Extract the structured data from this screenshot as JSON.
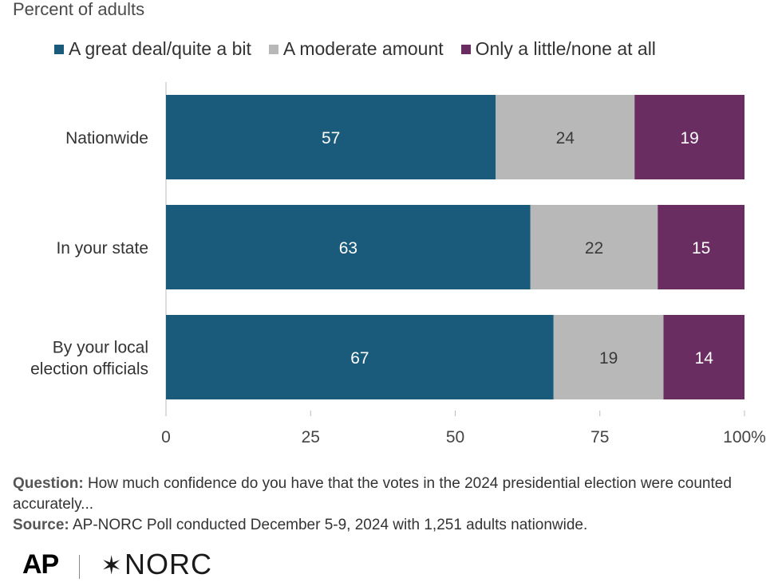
{
  "chart_data": {
    "type": "bar",
    "orientation": "horizontal",
    "stacked": true,
    "title": "",
    "subtitle": "Percent of adults",
    "categories": [
      "Nationwide",
      "In your state",
      "By your local election officials"
    ],
    "category_lines": [
      [
        "Nationwide"
      ],
      [
        "In your state"
      ],
      [
        "By your local",
        "election officials"
      ]
    ],
    "series": [
      {
        "name": "A great deal/quite a bit",
        "color": "#1a5a7a",
        "label_color": "#ffffff",
        "values": [
          57,
          63,
          67
        ]
      },
      {
        "name": "A moderate amount",
        "color": "#b8b8b8",
        "label_color": "#3a3a3a",
        "values": [
          24,
          22,
          19
        ]
      },
      {
        "name": "Only a little/none at all",
        "color": "#6a2d62",
        "label_color": "#ffffff",
        "values": [
          19,
          15,
          14
        ]
      }
    ],
    "xlim": [
      0,
      100
    ],
    "x_ticks": [
      0,
      25,
      50,
      75,
      100
    ],
    "x_tick_labels": [
      "0",
      "25",
      "50",
      "75",
      "100%"
    ],
    "xlabel": "",
    "ylabel": "",
    "grid": false,
    "legend_position": "top"
  },
  "notes": {
    "question_label": "Question:",
    "question_text": "How much confidence do you have that the votes in the 2024 presidential election were counted accurately...",
    "source_label": "Source:",
    "source_text": "AP-NORC Poll conducted December 5-9, 2024 with 1,251 adults nationwide."
  },
  "logos": {
    "ap": "AP",
    "norc_star": "✶",
    "norc": "NORC"
  }
}
